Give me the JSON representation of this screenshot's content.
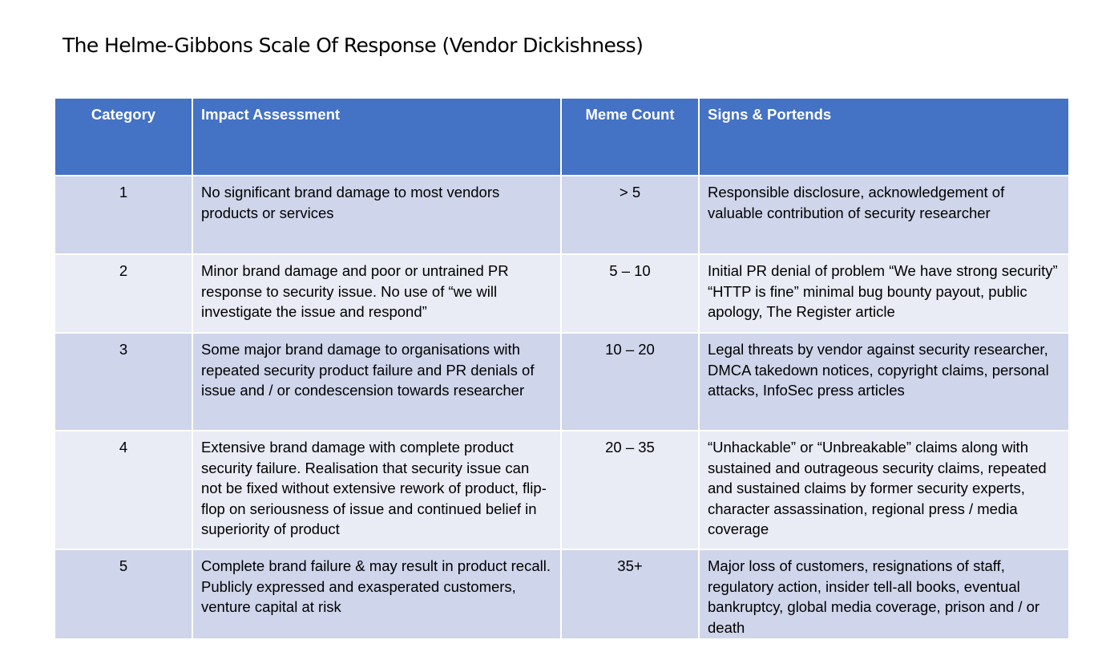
{
  "title": "The Helme-Gibbons Scale Of Response (Vendor Dickishness)",
  "table": {
    "headers": [
      "Category",
      "Impact Assessment",
      "Meme Count",
      "Signs & Portends"
    ],
    "rows": [
      {
        "category": "1",
        "impact": "No significant brand damage to most vendors products or services",
        "meme_count": "> 5",
        "signs": "Responsible disclosure, acknowledgement of valuable contribution of security researcher"
      },
      {
        "category": "2",
        "impact": "Minor brand damage and poor or untrained PR response to security issue. No use of “we will investigate the issue and respond”",
        "meme_count": "5 – 10",
        "signs": "Initial PR denial of problem “We have strong security” “HTTP is fine” minimal bug bounty payout, public apology, The Register article"
      },
      {
        "category": "3",
        "impact": "Some major brand damage to organisations with repeated security product failure and PR denials of issue and / or condescension towards researcher",
        "meme_count": "10 – 20",
        "signs": "Legal threats by vendor against security researcher, DMCA takedown notices, copyright claims, personal attacks, InfoSec press articles"
      },
      {
        "category": "4",
        "impact": "Extensive brand damage with complete product security failure. Realisation that security issue can not be fixed without extensive rework of product, flip-flop on seriousness of issue and continued belief in superiority of product",
        "meme_count": "20 – 35",
        "signs": "“Unhackable” or “Unbreakable” claims along with sustained and outrageous security claims, repeated and sustained claims by former security experts, character assassination, regional press / media coverage"
      },
      {
        "category": "5",
        "impact": "Complete brand failure & may result in product recall. Publicly expressed and exasperated customers, venture capital at risk",
        "meme_count": "35+",
        "signs": "Major loss of customers, resignations of staff, regulatory action, insider tell-all books, eventual bankruptcy, global media coverage, prison and / or death"
      }
    ]
  },
  "colors": {
    "header_bg": "#4472c4",
    "row_dark": "#cfd5ea",
    "row_light": "#e9ebf5"
  }
}
